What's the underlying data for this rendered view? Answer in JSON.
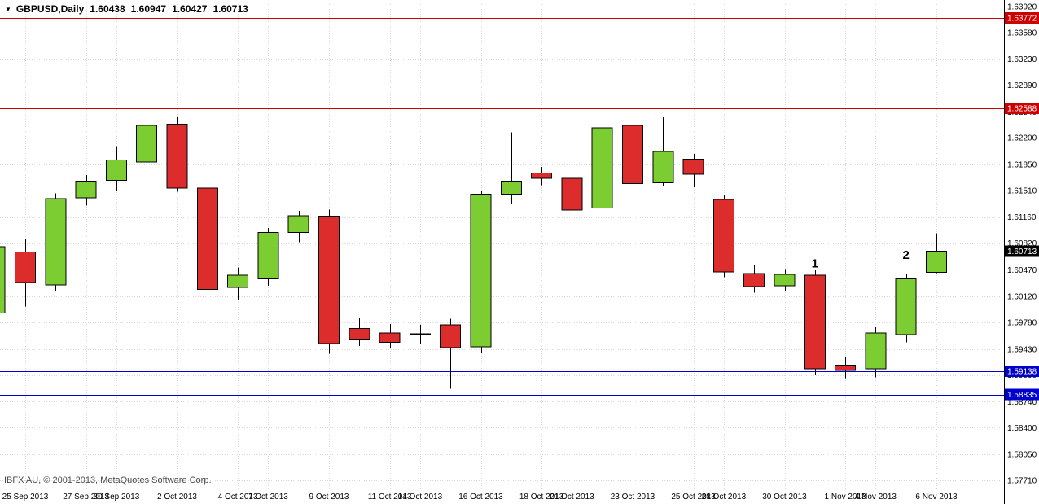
{
  "header": {
    "symbol": "GBPUSD,Daily",
    "open": "1.60438",
    "high": "1.60947",
    "low": "1.60427",
    "close": "1.60713"
  },
  "icons": {
    "symbol_dropdown_glyph": "▼"
  },
  "footer": {
    "copyright": "IBFX AU, © 2001-2013, MetaQuotes Software Corp."
  },
  "colors": {
    "background": "#ffffff",
    "bull": "#7ccd31",
    "bear": "#dd2c2c",
    "candle_outline": "#000000",
    "wick": "#000000",
    "grid": "#d9d9d9",
    "axis_text": "#000000",
    "resistance": "#cc0000",
    "support": "#0000cc",
    "current_badge_bg": "#000000",
    "badge_text": "#ffffff",
    "bid_line": "#999999",
    "border": "#000000",
    "annotation": "#000000"
  },
  "chart_data": {
    "type": "candlestick",
    "symbol": "GBPUSD",
    "timeframe": "Daily",
    "view": {
      "price_at_top": 1.64005,
      "price_at_bottom": 1.57603
    },
    "y_axis_labels": [
      "1.63920",
      "1.63580",
      "1.63230",
      "1.62890",
      "1.62540",
      "1.62200",
      "1.61850",
      "1.61510",
      "1.61160",
      "1.60820",
      "1.60470",
      "1.60120",
      "1.59780",
      "1.59430",
      "1.59090",
      "1.58740",
      "1.58400",
      "1.58050",
      "1.57710"
    ],
    "x_axis_labels": [
      {
        "text": "25 Sep 2013",
        "candle": 1
      },
      {
        "text": "27 Sep 2013",
        "candle": 3
      },
      {
        "text": "30 Sep 2013",
        "candle": 4
      },
      {
        "text": "2 Oct 2013",
        "candle": 6
      },
      {
        "text": "4 Oct 2013",
        "candle": 8
      },
      {
        "text": "7 Oct 2013",
        "candle": 9
      },
      {
        "text": "9 Oct 2013",
        "candle": 11
      },
      {
        "text": "11 Oct 2013",
        "candle": 13
      },
      {
        "text": "14 Oct 2013",
        "candle": 14
      },
      {
        "text": "16 Oct 2013",
        "candle": 16
      },
      {
        "text": "18 Oct 2013",
        "candle": 18
      },
      {
        "text": "21 Oct 2013",
        "candle": 19
      },
      {
        "text": "23 Oct 2013",
        "candle": 21
      },
      {
        "text": "25 Oct 2013",
        "candle": 23
      },
      {
        "text": "28 Oct 2013",
        "candle": 24
      },
      {
        "text": "30 Oct 2013",
        "candle": 26
      },
      {
        "text": "1 Nov 2013",
        "candle": 28
      },
      {
        "text": "4 Nov 2013",
        "candle": 29
      },
      {
        "text": "6 Nov 2013",
        "candle": 31
      }
    ],
    "candles": [
      {
        "date": "24 Sep 2013",
        "o": 1.599,
        "h": 1.6086,
        "l": 1.598,
        "c": 1.6077
      },
      {
        "date": "25 Sep 2013",
        "o": 1.607,
        "h": 1.6088,
        "l": 1.5999,
        "c": 1.603
      },
      {
        "date": "26 Sep 2013",
        "o": 1.6027,
        "h": 1.6147,
        "l": 1.6019,
        "c": 1.614
      },
      {
        "date": "27 Sep 2013",
        "o": 1.6141,
        "h": 1.6171,
        "l": 1.6131,
        "c": 1.6163
      },
      {
        "date": "30 Sep 2013",
        "o": 1.6164,
        "h": 1.6209,
        "l": 1.6151,
        "c": 1.6191
      },
      {
        "date": "1 Oct 2013",
        "o": 1.6188,
        "h": 1.626,
        "l": 1.6177,
        "c": 1.6236
      },
      {
        "date": "2 Oct 2013",
        "o": 1.6238,
        "h": 1.6247,
        "l": 1.6149,
        "c": 1.6154
      },
      {
        "date": "3 Oct 2013",
        "o": 1.6154,
        "h": 1.6162,
        "l": 1.6014,
        "c": 1.6021
      },
      {
        "date": "4 Oct 2013",
        "o": 1.6024,
        "h": 1.605,
        "l": 1.6007,
        "c": 1.604
      },
      {
        "date": "7 Oct 2013",
        "o": 1.6035,
        "h": 1.6102,
        "l": 1.6026,
        "c": 1.6096
      },
      {
        "date": "8 Oct 2013",
        "o": 1.6096,
        "h": 1.6124,
        "l": 1.6083,
        "c": 1.6118
      },
      {
        "date": "9 Oct 2013",
        "o": 1.6117,
        "h": 1.6126,
        "l": 1.5937,
        "c": 1.595
      },
      {
        "date": "10 Oct 2013",
        "o": 1.597,
        "h": 1.5984,
        "l": 1.5947,
        "c": 1.5956
      },
      {
        "date": "11 Oct 2013",
        "o": 1.5964,
        "h": 1.5976,
        "l": 1.5944,
        "c": 1.5952
      },
      {
        "date": "14 Oct 2013",
        "o": 1.5963,
        "h": 1.5975,
        "l": 1.5949,
        "c": 1.5963
      },
      {
        "date": "15 Oct 2013",
        "o": 1.5975,
        "h": 1.5983,
        "l": 1.5891,
        "c": 1.5945
      },
      {
        "date": "16 Oct 2013",
        "o": 1.5946,
        "h": 1.6151,
        "l": 1.5938,
        "c": 1.6146
      },
      {
        "date": "17 Oct 2013",
        "o": 1.6146,
        "h": 1.6227,
        "l": 1.6134,
        "c": 1.6163
      },
      {
        "date": "18 Oct 2013",
        "o": 1.6174,
        "h": 1.6182,
        "l": 1.6158,
        "c": 1.6167
      },
      {
        "date": "21 Oct 2013",
        "o": 1.6167,
        "h": 1.6174,
        "l": 1.6118,
        "c": 1.6125
      },
      {
        "date": "22 Oct 2013",
        "o": 1.6128,
        "h": 1.6241,
        "l": 1.6121,
        "c": 1.6233
      },
      {
        "date": "23 Oct 2013",
        "o": 1.6236,
        "h": 1.6259,
        "l": 1.6154,
        "c": 1.616
      },
      {
        "date": "24 Oct 2013",
        "o": 1.6161,
        "h": 1.6247,
        "l": 1.6156,
        "c": 1.6202
      },
      {
        "date": "25 Oct 2013",
        "o": 1.6192,
        "h": 1.6199,
        "l": 1.6155,
        "c": 1.6172
      },
      {
        "date": "28 Oct 2013",
        "o": 1.6139,
        "h": 1.6145,
        "l": 1.6037,
        "c": 1.6044
      },
      {
        "date": "29 Oct 2013",
        "o": 1.6042,
        "h": 1.6053,
        "l": 1.6017,
        "c": 1.6025
      },
      {
        "date": "30 Oct 2013",
        "o": 1.6026,
        "h": 1.6048,
        "l": 1.6019,
        "c": 1.6041
      },
      {
        "date": "31 Oct 2013",
        "o": 1.604,
        "h": 1.6046,
        "l": 1.5909,
        "c": 1.5917
      },
      {
        "date": "1 Nov 2013",
        "o": 1.5922,
        "h": 1.5932,
        "l": 1.5905,
        "c": 1.5915
      },
      {
        "date": "4 Nov 2013",
        "o": 1.5917,
        "h": 1.5972,
        "l": 1.5906,
        "c": 1.5964
      },
      {
        "date": "5 Nov 2013",
        "o": 1.5962,
        "h": 1.6042,
        "l": 1.5952,
        "c": 1.6035
      },
      {
        "date": "6 Nov 2013",
        "o": 1.60438,
        "h": 1.60947,
        "l": 1.60427,
        "c": 1.60713
      }
    ],
    "hlines": [
      {
        "price": 1.63772,
        "label": "1.63772",
        "color": "#cc0000"
      },
      {
        "price": 1.62588,
        "label": "1.62588",
        "color": "#cc0000"
      },
      {
        "price": 1.59138,
        "label": "1.59138",
        "color": "#0000cc"
      },
      {
        "price": 1.58835,
        "label": "1.58835",
        "color": "#0000cc"
      }
    ],
    "current_price": {
      "value": 1.60713,
      "label": "1.60713"
    },
    "annotations": [
      {
        "text": "1",
        "candle": 27,
        "price": 1.605
      },
      {
        "text": "2",
        "candle": 30,
        "price": 1.6061
      }
    ]
  }
}
